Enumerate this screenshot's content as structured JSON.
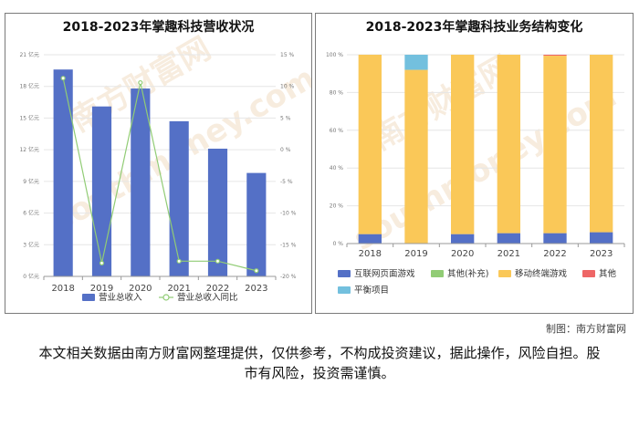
{
  "chart_data": [
    {
      "type": "bar",
      "title": "2018-2023年掌趣科技营收状况",
      "categories": [
        "2018",
        "2019",
        "2020",
        "2021",
        "2022",
        "2023"
      ],
      "y_ticks": [
        "0 亿元",
        "3 亿元",
        "6 亿元",
        "9 亿元",
        "12 亿元",
        "15 亿元",
        "18 亿元",
        "21 亿元"
      ],
      "y2_ticks": [
        "-20 %",
        "-15 %",
        "-10 %",
        "-5 %",
        "0 %",
        "5 %",
        "10 %",
        "15 %"
      ],
      "ylim": [
        0,
        21
      ],
      "y2lim": [
        -20,
        15
      ],
      "series": [
        {
          "name": "营业总收入",
          "type": "bar",
          "color": "#5470c6",
          "values": [
            19.6,
            16.1,
            17.8,
            14.7,
            12.1,
            9.8
          ]
        },
        {
          "name": "营业总收入同比",
          "type": "line",
          "axis": "right",
          "color": "#91cc75",
          "values": [
            11.3,
            -17.9,
            10.6,
            -17.6,
            -17.6,
            -19.1
          ]
        }
      ],
      "legend": "bottom"
    },
    {
      "type": "bar",
      "stacked": true,
      "title": "2018-2023年掌趣科技业务结构变化",
      "categories": [
        "2018",
        "2019",
        "2020",
        "2021",
        "2022",
        "2023"
      ],
      "y_ticks": [
        "0 %",
        "20 %",
        "40 %",
        "60 %",
        "80 %",
        "100 %"
      ],
      "ylim": [
        0,
        100
      ],
      "series": [
        {
          "name": "互联网页面游戏",
          "color": "#5470c6",
          "values": [
            5.0,
            0.0,
            5.0,
            5.5,
            5.5,
            6.0
          ]
        },
        {
          "name": "其他(补充)",
          "color": "#91cc75",
          "values": [
            0.0,
            0.0,
            0.0,
            0.0,
            0.0,
            0.0
          ]
        },
        {
          "name": "移动终端游戏",
          "color": "#fac858",
          "values": [
            95.0,
            92.0,
            95.0,
            94.5,
            94.0,
            94.0
          ]
        },
        {
          "name": "其他",
          "color": "#ee6666",
          "values": [
            0.0,
            0.0,
            0.0,
            0.0,
            0.5,
            0.0
          ]
        },
        {
          "name": "平衡项目",
          "color": "#73c0de",
          "values": [
            0.0,
            8.0,
            0.0,
            0.0,
            0.0,
            0.0
          ]
        }
      ],
      "legend": "bottom"
    }
  ],
  "footer": {
    "credit": "制图：南方财富网",
    "disclaimer": "本文相关数据由南方财富网整理提供，仅供参考，不构成投资建议，据此操作，风险自担。股市有风险，投资需谨慎。"
  },
  "watermark": {
    "text_cn": "南方财富网",
    "text_en": "southmoney.com"
  }
}
